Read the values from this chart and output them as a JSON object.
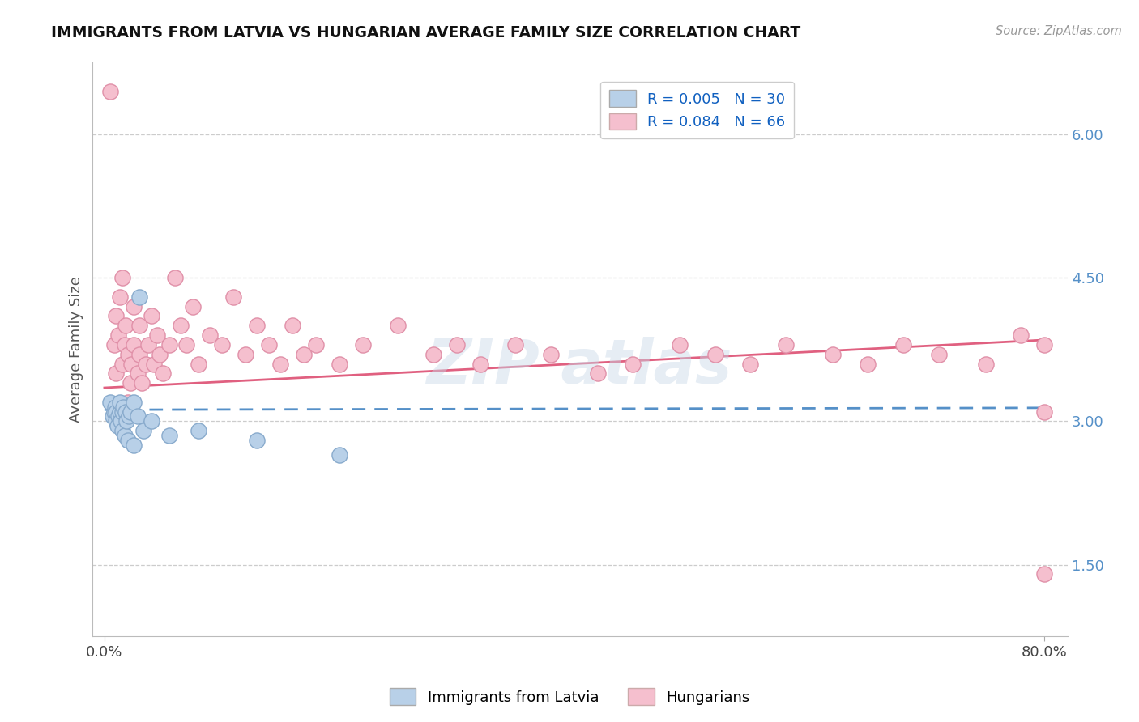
{
  "title": "IMMIGRANTS FROM LATVIA VS HUNGARIAN AVERAGE FAMILY SIZE CORRELATION CHART",
  "source_text": "Source: ZipAtlas.com",
  "ylabel": "Average Family Size",
  "xlim": [
    -0.01,
    0.82
  ],
  "ylim": [
    0.75,
    6.75
  ],
  "yticks": [
    1.5,
    3.0,
    4.5,
    6.0
  ],
  "xticks": [
    0.0,
    0.8
  ],
  "xticklabels": [
    "0.0%",
    "80.0%"
  ],
  "yticklabels_right": [
    "1.50",
    "3.00",
    "4.50",
    "6.00"
  ],
  "blue_R": 0.005,
  "blue_N": 30,
  "pink_R": 0.084,
  "pink_N": 66,
  "legend_label_blue": "Immigrants from Latvia",
  "legend_label_pink": "Hungarians",
  "blue_color": "#b8d0e8",
  "pink_color": "#f5bfce",
  "blue_line_color": "#5590c8",
  "pink_line_color": "#e06080",
  "blue_dot_edge": "#88aacc",
  "pink_dot_edge": "#e090a8",
  "background_color": "#ffffff",
  "grid_color": "#cccccc",
  "title_color": "#111111",
  "legend_text_color": "#1060c0",
  "blue_x": [
    0.005,
    0.007,
    0.008,
    0.009,
    0.01,
    0.01,
    0.011,
    0.012,
    0.013,
    0.013,
    0.014,
    0.015,
    0.015,
    0.016,
    0.017,
    0.018,
    0.019,
    0.02,
    0.021,
    0.022,
    0.025,
    0.025,
    0.028,
    0.03,
    0.033,
    0.04,
    0.055,
    0.08,
    0.13,
    0.2
  ],
  "blue_y": [
    3.2,
    3.05,
    3.1,
    3.15,
    3.0,
    3.1,
    2.95,
    3.05,
    3.1,
    3.2,
    3.0,
    2.9,
    3.1,
    3.15,
    2.85,
    3.1,
    3.0,
    2.8,
    3.05,
    3.1,
    3.2,
    2.75,
    3.05,
    4.3,
    2.9,
    3.0,
    2.85,
    2.9,
    2.8,
    2.65
  ],
  "pink_x": [
    0.005,
    0.008,
    0.01,
    0.01,
    0.012,
    0.013,
    0.015,
    0.015,
    0.017,
    0.018,
    0.02,
    0.02,
    0.022,
    0.023,
    0.025,
    0.025,
    0.028,
    0.03,
    0.03,
    0.032,
    0.035,
    0.037,
    0.04,
    0.042,
    0.045,
    0.047,
    0.05,
    0.055,
    0.06,
    0.065,
    0.07,
    0.075,
    0.08,
    0.09,
    0.1,
    0.11,
    0.12,
    0.13,
    0.14,
    0.15,
    0.16,
    0.17,
    0.18,
    0.2,
    0.22,
    0.25,
    0.28,
    0.3,
    0.32,
    0.35,
    0.38,
    0.42,
    0.45,
    0.49,
    0.52,
    0.55,
    0.58,
    0.62,
    0.65,
    0.68,
    0.71,
    0.75,
    0.78,
    0.8,
    0.8,
    0.8
  ],
  "pink_y": [
    6.45,
    3.8,
    3.5,
    4.1,
    3.9,
    4.3,
    3.6,
    4.5,
    3.8,
    4.0,
    3.2,
    3.7,
    3.4,
    3.6,
    4.2,
    3.8,
    3.5,
    3.7,
    4.0,
    3.4,
    3.6,
    3.8,
    4.1,
    3.6,
    3.9,
    3.7,
    3.5,
    3.8,
    4.5,
    4.0,
    3.8,
    4.2,
    3.6,
    3.9,
    3.8,
    4.3,
    3.7,
    4.0,
    3.8,
    3.6,
    4.0,
    3.7,
    3.8,
    3.6,
    3.8,
    4.0,
    3.7,
    3.8,
    3.6,
    3.8,
    3.7,
    3.5,
    3.6,
    3.8,
    3.7,
    3.6,
    3.8,
    3.7,
    3.6,
    3.8,
    3.7,
    3.6,
    3.9,
    3.8,
    3.1,
    1.4
  ],
  "pink_trend_x0": 0.0,
  "pink_trend_y0": 3.35,
  "pink_trend_x1": 0.8,
  "pink_trend_y1": 3.85,
  "blue_trend_x0": 0.0,
  "blue_trend_y0": 3.12,
  "blue_trend_x1": 0.8,
  "blue_trend_y1": 3.14
}
